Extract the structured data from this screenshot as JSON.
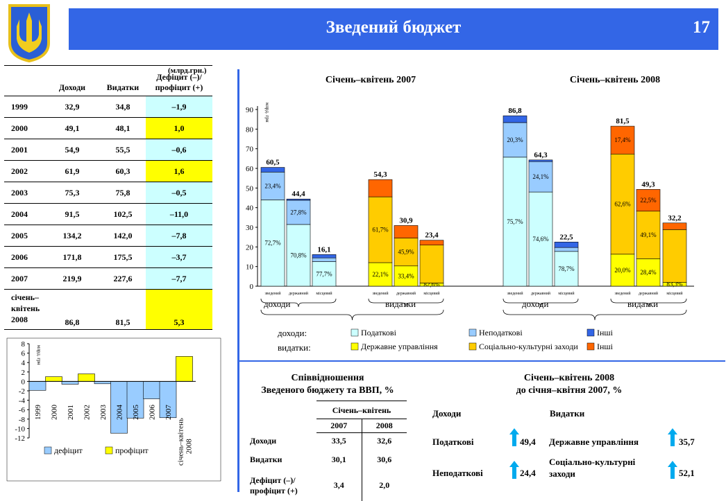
{
  "header": {
    "title": "Зведений бюджет",
    "page": "17"
  },
  "table": {
    "unit": "(млрд.грн.)",
    "headers": [
      "Доходи",
      "Видатки",
      "Дефіцит (–)/ профіцит (+)"
    ],
    "rows": [
      {
        "year": "1999",
        "income": "32,9",
        "expense": "34,8",
        "balance": "–1,9"
      },
      {
        "year": "2000",
        "income": "49,1",
        "expense": "48,1",
        "balance": "1,0"
      },
      {
        "year": "2001",
        "income": "54,9",
        "expense": "55,5",
        "balance": "–0,6"
      },
      {
        "year": "2002",
        "income": "61,9",
        "expense": "60,3",
        "balance": "1,6"
      },
      {
        "year": "2003",
        "income": "75,3",
        "expense": "75,8",
        "balance": "–0,5"
      },
      {
        "year": "2004",
        "income": "91,5",
        "expense": "102,5",
        "balance": "–11,0"
      },
      {
        "year": "2005",
        "income": "134,2",
        "expense": "142,0",
        "balance": "–7,8"
      },
      {
        "year": "2006",
        "income": "171,8",
        "expense": "175,5",
        "balance": "–3,7"
      },
      {
        "year": "2007",
        "income": "219,9",
        "expense": "227,6",
        "balance": "–7,7"
      }
    ],
    "last_row": {
      "year_line1": "січень–",
      "year_line2": "квітень",
      "year_line3": "2008",
      "income": "86,8",
      "expense": "81,5",
      "balance": "5,3"
    }
  },
  "chart_data": [
    {
      "type": "bar",
      "ylabel": "млрд. грн",
      "ylim": [
        -12,
        8
      ],
      "yticks": [
        8,
        6,
        4,
        2,
        0,
        -2,
        -4,
        -6,
        -8,
        -10,
        -12
      ],
      "categories": [
        "1999",
        "2000",
        "2001",
        "2002",
        "2003",
        "2004",
        "2005",
        "2006",
        "2007",
        "січень–квітень 2008"
      ],
      "values": [
        -1.9,
        1.0,
        -0.6,
        1.6,
        -0.5,
        -11.0,
        -7.8,
        -3.7,
        -7.7,
        5.3
      ],
      "legend": [
        "дефіцит",
        "профіцит"
      ]
    },
    {
      "type": "bar",
      "stacked": true,
      "ylabel": "млрд. грн",
      "ylim": [
        0,
        90
      ],
      "yticks": [
        0,
        10,
        20,
        30,
        40,
        50,
        60,
        70,
        80,
        90
      ],
      "panels": [
        {
          "title": "Січень–квітень 2007",
          "groups": [
            {
              "name": "доходи",
              "bars": [
                {
                  "label": "зведений",
                  "total": 60.5,
                  "total_label": "60,5",
                  "segments": [
                    43.98,
                    14.15,
                    2.37
                  ],
                  "pct": [
                    "72,7%",
                    "23,4%"
                  ]
                },
                {
                  "label": "державний",
                  "total": 44.4,
                  "total_label": "44,4",
                  "segments": [
                    31.44,
                    12.34,
                    0.62
                  ],
                  "pct": [
                    "70,8%",
                    "27,8%"
                  ]
                },
                {
                  "label": "місцевий",
                  "total": 16.1,
                  "total_label": "16,1",
                  "segments": [
                    12.51,
                    1.9,
                    1.69
                  ],
                  "pct": [
                    "77,7%"
                  ]
                }
              ]
            },
            {
              "name": "видатки",
              "bars": [
                {
                  "label": "зведений",
                  "total": 54.3,
                  "total_label": "54,3",
                  "segments": [
                    12.0,
                    33.5,
                    8.8
                  ],
                  "pct": [
                    "22,1%",
                    "61,7%"
                  ]
                },
                {
                  "label": "державний",
                  "total": 30.9,
                  "total_label": "30,9",
                  "segments": [
                    10.32,
                    14.18,
                    6.4
                  ],
                  "pct": [
                    "33,4%",
                    "45,9%"
                  ]
                },
                {
                  "label": "місцевий",
                  "total": 23.4,
                  "total_label": "23,4",
                  "segments": [
                    1.6,
                    19.33,
                    2.47
                  ],
                  "pct": [
                    "82,6%"
                  ]
                }
              ]
            }
          ]
        },
        {
          "title": "Січень–квітень 2008",
          "groups": [
            {
              "name": "доходи",
              "bars": [
                {
                  "label": "зведений",
                  "total": 86.8,
                  "total_label": "86,8",
                  "segments": [
                    65.71,
                    17.62,
                    3.47
                  ],
                  "pct": [
                    "75,7%",
                    "20,3%"
                  ]
                },
                {
                  "label": "державний",
                  "total": 64.3,
                  "total_label": "64,3",
                  "segments": [
                    47.97,
                    15.5,
                    0.83
                  ],
                  "pct": [
                    "74,6%",
                    "24,1%"
                  ]
                },
                {
                  "label": "місцевий",
                  "total": 22.5,
                  "total_label": "22,5",
                  "segments": [
                    17.71,
                    2.0,
                    2.79
                  ],
                  "pct": [
                    "78,7%"
                  ]
                }
              ]
            },
            {
              "name": "видатки",
              "bars": [
                {
                  "label": "зведений",
                  "total": 81.5,
                  "total_label": "81,5",
                  "segments": [
                    16.3,
                    51.02,
                    14.18
                  ],
                  "pct": [
                    "20,0%",
                    "62,6%",
                    "17,4%"
                  ]
                },
                {
                  "label": "державний",
                  "total": 49.3,
                  "total_label": "49,3",
                  "segments": [
                    14.0,
                    24.21,
                    11.09
                  ],
                  "pct": [
                    "28,4%",
                    "49,1%",
                    "22,5%"
                  ]
                },
                {
                  "label": "місцевий",
                  "total": 32.2,
                  "total_label": "32,2",
                  "segments": [
                    2.0,
                    26.82,
                    3.38
                  ],
                  "pct": [
                    "83,3%"
                  ]
                }
              ]
            }
          ]
        }
      ],
      "legend": {
        "income_label": "доходи:",
        "expense_label": "видатки:",
        "income": [
          {
            "name": "Податкові",
            "color": "#ccffff"
          },
          {
            "name": "Неподаткові",
            "color": "#99ccff"
          },
          {
            "name": "Інші",
            "color": "#3366e6"
          }
        ],
        "expense": [
          {
            "name": "Державне управління",
            "color": "#ffff00"
          },
          {
            "name": "Соціально-культурні заходи",
            "color": "#ffcc00"
          },
          {
            "name": "Інші",
            "color": "#ff6600"
          }
        ]
      }
    }
  ],
  "ratio": {
    "title_line1": "Співвідношення",
    "title_line2": "Зведеного бюджету та ВВП, %",
    "period": "Січень–квітень",
    "years": [
      "2007",
      "2008"
    ],
    "rows": [
      {
        "label": "Доходи",
        "v2007": "33,5",
        "v2008": "32,6"
      },
      {
        "label": "Видатки",
        "v2007": "30,1",
        "v2008": "30,6"
      },
      {
        "label": "Дефіцит (–)/ профіцит (+)",
        "v2007": "3,4",
        "v2008": "2,0"
      }
    ]
  },
  "growth": {
    "title_line1": "Січень–квітень 2008",
    "title_line2": "до січня–квітня 2007, %",
    "income_head": "Доходи",
    "expense_head": "Видатки",
    "income": [
      {
        "label": "Податкові",
        "value": "49,4"
      },
      {
        "label": "Неподаткові",
        "value": "24,4"
      }
    ],
    "expense": [
      {
        "label": "Державне управління",
        "value": "35,7"
      },
      {
        "label": "Соціально-культурні заходи",
        "value": "52,1"
      }
    ]
  },
  "colors": {
    "accent": "#3366e6",
    "cyan": "#ccffff",
    "yellow": "#ffff00",
    "arrow": "#00aaee",
    "deficit": "#99ccff"
  }
}
